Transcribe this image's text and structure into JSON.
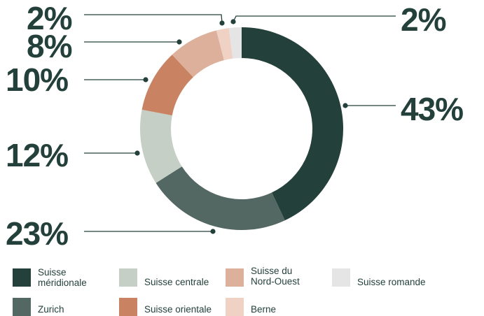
{
  "chart_data": {
    "type": "pie",
    "variant": "donut",
    "title": "",
    "categories": [
      "Suisse méridionale",
      "Zurich",
      "Suisse centrale",
      "Suisse orientale",
      "Suisse du Nord-Ouest",
      "Berne",
      "Suisse romande"
    ],
    "values": [
      43,
      23,
      12,
      10,
      8,
      2,
      2
    ],
    "labels": [
      "43%",
      "23%",
      "12%",
      "10%",
      "8%",
      "2%",
      "2%"
    ],
    "colors": [
      "#24403a",
      "#536763",
      "#c5cfc6",
      "#c98363",
      "#ddb09c",
      "#efd2c4",
      "#e5e5e5"
    ],
    "legend_position": "bottom",
    "legend": [
      {
        "label_lines": [
          "Suisse",
          "méridionale"
        ],
        "color": "#24403a"
      },
      {
        "label_lines": [
          "Suisse centrale"
        ],
        "color": "#c5cfc6"
      },
      {
        "label_lines": [
          "Suisse du",
          "Nord-Ouest"
        ],
        "color": "#ddb09c"
      },
      {
        "label_lines": [
          "Suisse romande"
        ],
        "color": "#e5e5e5"
      },
      {
        "label_lines": [
          "Zurich"
        ],
        "color": "#536763"
      },
      {
        "label_lines": [
          "Suisse orientale"
        ],
        "color": "#c98363"
      },
      {
        "label_lines": [
          "Berne"
        ],
        "color": "#efd2c4"
      }
    ]
  }
}
